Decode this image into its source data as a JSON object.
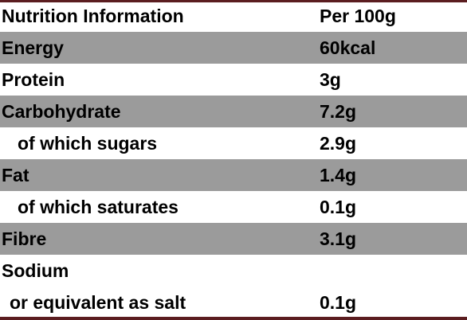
{
  "table": {
    "header": [
      "Nutrition Information",
      "Per 100g"
    ],
    "rows": [
      [
        "Energy",
        "60kcal"
      ],
      [
        "Protein",
        "3g"
      ],
      [
        "Carbohydrate",
        "7.2g"
      ],
      [
        "of which sugars",
        "2.9g"
      ],
      [
        "Fat",
        "1.4g"
      ],
      [
        "of which saturates",
        "0.1g"
      ],
      [
        "Fibre",
        "3.1g"
      ],
      [
        "Sodium"
      ],
      [
        "or equivalent as salt",
        "0.1g"
      ]
    ]
  }
}
